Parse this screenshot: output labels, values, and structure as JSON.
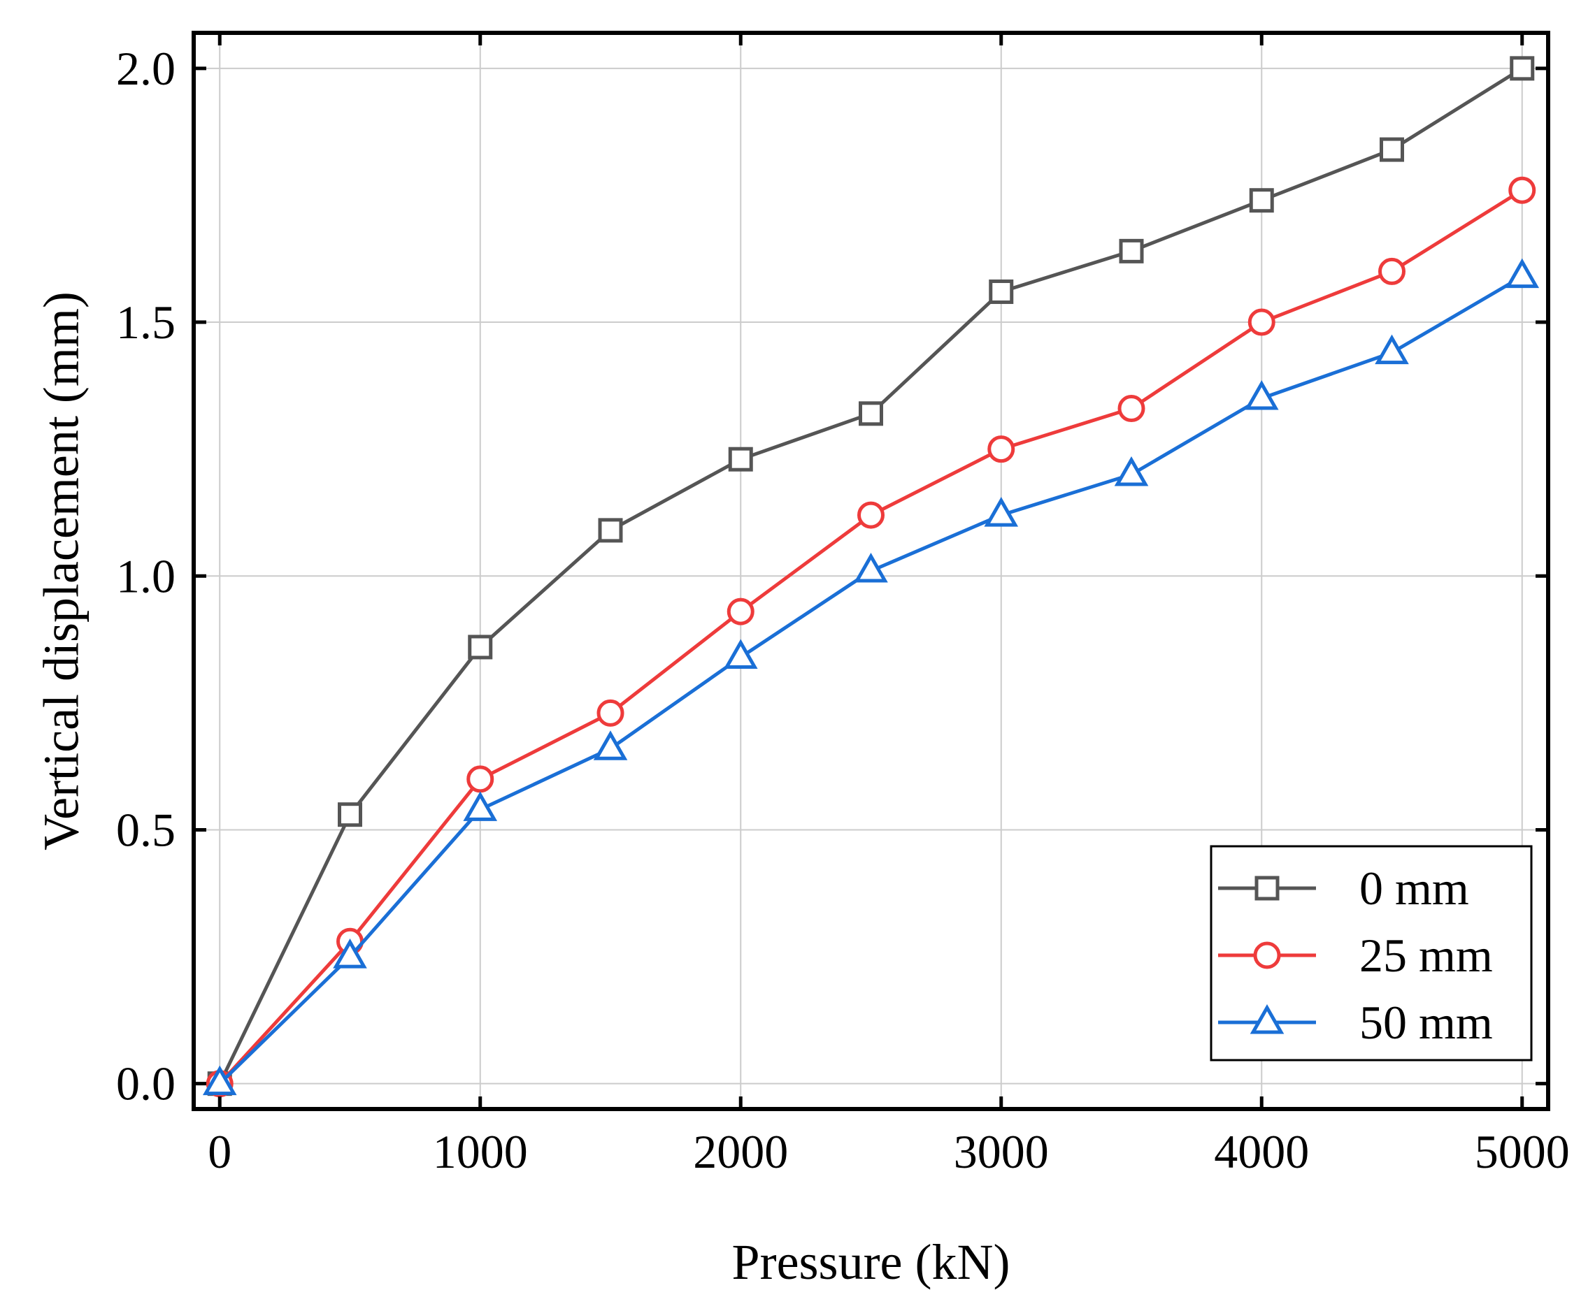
{
  "chart_data": {
    "type": "line",
    "title": "",
    "xlabel": "Pressure (kN)",
    "ylabel": "Vertical displacement (mm)",
    "xlim": [
      -100,
      5100
    ],
    "ylim": [
      -0.05,
      2.07
    ],
    "xticks": [
      0,
      1000,
      2000,
      3000,
      4000,
      5000
    ],
    "xtick_labels": [
      "0",
      "1000",
      "2000",
      "3000",
      "4000",
      "5000"
    ],
    "yticks": [
      0.0,
      0.5,
      1.0,
      1.5,
      2.0
    ],
    "ytick_labels": [
      "0.0",
      "0.5",
      "1.0",
      "1.5",
      "2.0"
    ],
    "grid": true,
    "legend_position": "bottom-right",
    "x": [
      0,
      500,
      1000,
      1500,
      2000,
      2500,
      3000,
      3500,
      4000,
      4500,
      5000
    ],
    "series": [
      {
        "name": "0 mm",
        "color": "#555555",
        "marker": "square",
        "values": [
          0.0,
          0.53,
          0.86,
          1.09,
          1.23,
          1.32,
          1.56,
          1.64,
          1.74,
          1.84,
          2.0
        ]
      },
      {
        "name": "25 mm",
        "color": "#ee3b3b",
        "marker": "circle",
        "values": [
          0.0,
          0.28,
          0.6,
          0.73,
          0.93,
          1.12,
          1.25,
          1.33,
          1.5,
          1.6,
          1.76
        ]
      },
      {
        "name": "50 mm",
        "color": "#1a6fd6",
        "marker": "triangle",
        "values": [
          0.0,
          0.25,
          0.54,
          0.66,
          0.84,
          1.01,
          1.12,
          1.2,
          1.35,
          1.44,
          1.59
        ]
      }
    ]
  }
}
